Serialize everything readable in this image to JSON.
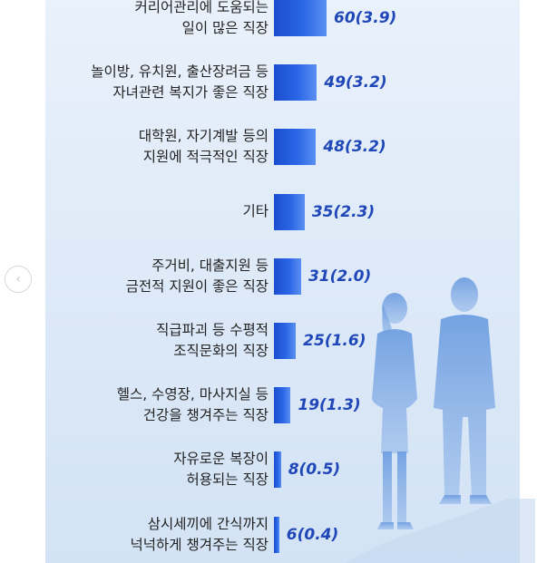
{
  "nav": {
    "prev_icon": "chevron-left-icon",
    "prev_glyph": "‹"
  },
  "chart_data": {
    "type": "bar",
    "orientation": "horizontal",
    "title": "",
    "xlabel": "",
    "ylabel": "",
    "xlim": [
      0,
      60
    ],
    "grid": false,
    "categories": [
      [
        "커리어관리에 도움되는",
        "일이 많은 직장"
      ],
      [
        "놀이방, 유치원, 출산장려금 등",
        "자녀관련 복지가 좋은 직장"
      ],
      [
        "대학원, 자기계발 등의",
        "지원에 적극적인 직장"
      ],
      [
        "기타"
      ],
      [
        "주거비, 대출지원 등",
        "금전적 지원이 좋은 직장"
      ],
      [
        "직급파괴 등 수평적",
        "조직문화의 직장"
      ],
      [
        "헬스, 수영장, 마사지실 등",
        "건강을 챙겨주는 직장"
      ],
      [
        "자유로운 복장이",
        "허용되는 직장"
      ],
      [
        "삼시세끼에 간식까지",
        "넉넉하게 챙겨주는 직장"
      ]
    ],
    "values": [
      60,
      49,
      48,
      35,
      31,
      25,
      19,
      8,
      6
    ],
    "data_labels": [
      "60(3.9)",
      "49(3.2)",
      "48(3.2)",
      "35(2.3)",
      "31(2.0)",
      "25(1.6)",
      "19(1.3)",
      "8(0.5)",
      "6(0.4)"
    ],
    "colors": {
      "bar_start": "#1b4ecf",
      "bar_end": "#5a8ff2",
      "value_text": "#1f47b8"
    }
  }
}
